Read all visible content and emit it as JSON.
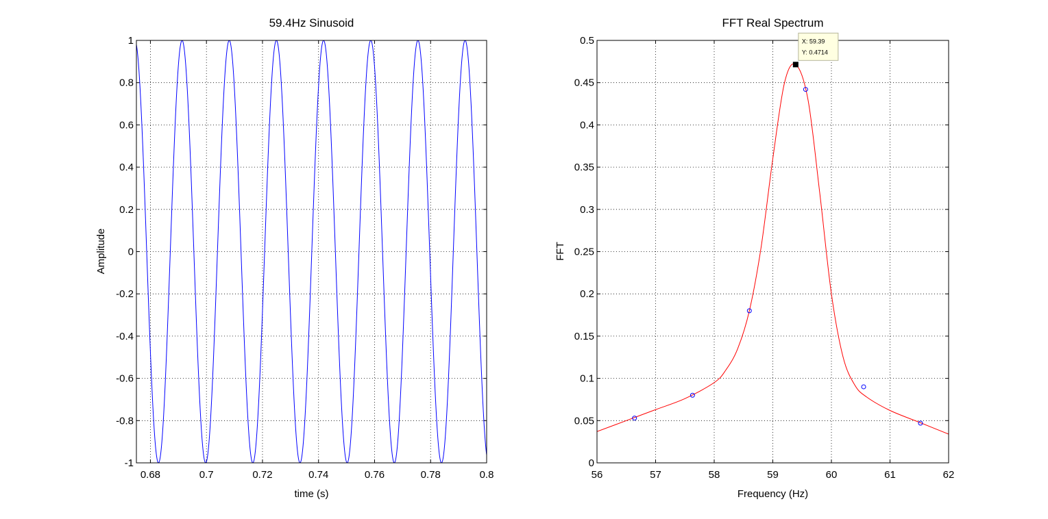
{
  "chart_data": [
    {
      "type": "line",
      "title": "59.4Hz Sinusoid",
      "xlabel": "time (s)",
      "ylabel": "Amplitude",
      "xlim": [
        0.675,
        0.8
      ],
      "ylim": [
        -1,
        1
      ],
      "xticks": [
        0.68,
        0.7,
        0.72,
        0.74,
        0.76,
        0.78,
        0.8
      ],
      "xtick_labels": [
        "0.68",
        "0.7",
        "0.72",
        "0.74",
        "0.76",
        "0.78",
        "0.8"
      ],
      "yticks": [
        -1,
        -0.8,
        -0.6,
        -0.4,
        -0.2,
        0,
        0.2,
        0.4,
        0.6,
        0.8,
        1
      ],
      "ytick_labels": [
        "-1",
        "-0.8",
        "-0.6",
        "-0.4",
        "-0.2",
        "0",
        "0.2",
        "0.4",
        "0.6",
        "0.8",
        "1"
      ],
      "grid": true,
      "series": [
        {
          "function": "sin",
          "frequency_hz": 59.4,
          "amplitude": 1,
          "peak_time_s": 0.6913,
          "color": "#0000ff"
        }
      ]
    },
    {
      "type": "line",
      "title": "FFT Real Spectrum",
      "xlabel": "Frequency (Hz)",
      "ylabel": "FFT",
      "xlim": [
        56,
        62
      ],
      "ylim": [
        0,
        0.5
      ],
      "xticks": [
        56,
        57,
        58,
        59,
        60,
        61,
        62
      ],
      "xtick_labels": [
        "56",
        "57",
        "58",
        "59",
        "60",
        "61",
        "62"
      ],
      "yticks": [
        0,
        0.05,
        0.1,
        0.15,
        0.2,
        0.25,
        0.3,
        0.35,
        0.4,
        0.45,
        0.5
      ],
      "ytick_labels": [
        "0",
        "0.05",
        "0.1",
        "0.15",
        "0.2",
        "0.25",
        "0.3",
        "0.35",
        "0.4",
        "0.45",
        "0.5"
      ],
      "grid": true,
      "series": [
        {
          "style": "line",
          "color": "#ff0000",
          "x": [
            56.0,
            56.5,
            57.0,
            57.5,
            58.0,
            58.2,
            58.4,
            58.6,
            58.8,
            59.0,
            59.2,
            59.39,
            59.6,
            59.8,
            60.0,
            60.2,
            60.4,
            60.6,
            61.0,
            61.5,
            62.0
          ],
          "y": [
            0.037,
            0.05,
            0.063,
            0.076,
            0.095,
            0.11,
            0.135,
            0.18,
            0.255,
            0.36,
            0.45,
            0.4714,
            0.43,
            0.32,
            0.2,
            0.125,
            0.092,
            0.078,
            0.062,
            0.048,
            0.034
          ]
        },
        {
          "style": "markers",
          "marker": "circle",
          "color": "#0000ff",
          "x": [
            56.64,
            57.63,
            58.6,
            59.56,
            60.55,
            61.52
          ],
          "y": [
            0.053,
            0.08,
            0.18,
            0.442,
            0.09,
            0.047
          ]
        }
      ],
      "datatip": {
        "x": 59.39,
        "y": 0.4714,
        "x_text": "X: 59.39",
        "y_text": "Y: 0.4714"
      }
    }
  ]
}
